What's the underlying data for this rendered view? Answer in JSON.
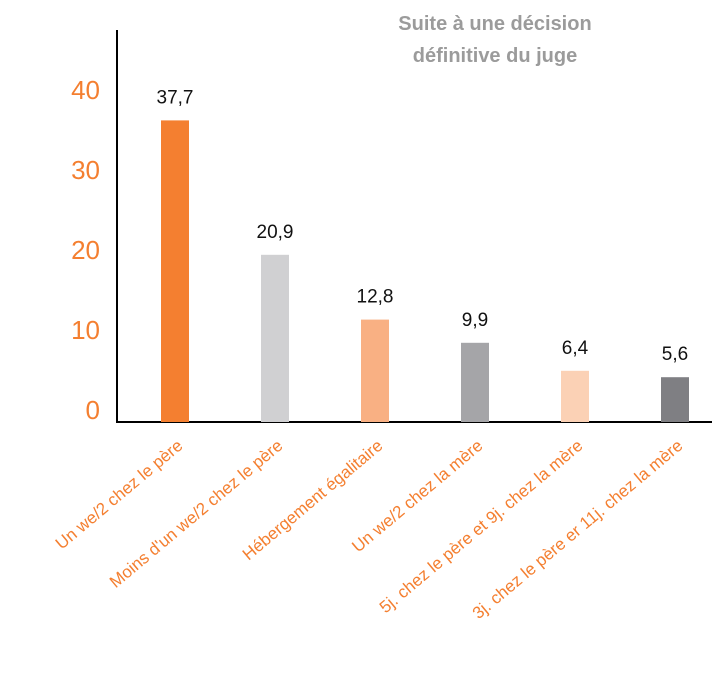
{
  "chart_data": {
    "type": "bar",
    "title": "Suite à une décision définitive du juge",
    "categories": [
      "Un we/2 chez le père",
      "Moins d'un we/2 chez le père",
      "Hébergement égalitaire",
      "Un we/2 chez la mère",
      "5j. chez le père et 9j. chez la mère",
      "3j. chez le père er 11j. chez la mère"
    ],
    "values": [
      37.7,
      20.9,
      12.8,
      9.9,
      6.4,
      5.6
    ],
    "value_labels": [
      "37,7",
      "20,9",
      "12,8",
      "9,9",
      "6,4",
      "5,6"
    ],
    "colors": [
      "#f47f30",
      "#d0d0d2",
      "#f9b083",
      "#a5a5a8",
      "#fbd1b5",
      "#7f7f83"
    ],
    "ylim": [
      0,
      49
    ],
    "yticks": [
      0,
      10,
      20,
      30,
      40
    ],
    "grid": false
  }
}
